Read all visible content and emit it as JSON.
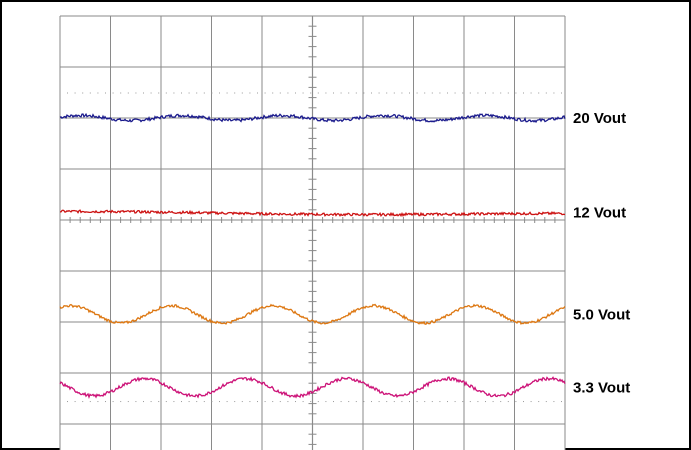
{
  "chart_data": {
    "type": "line",
    "title": "",
    "xlabel": "",
    "ylabel": "",
    "grid": true,
    "legend": "right",
    "divisions": {
      "x": 10,
      "y": 8
    },
    "series": [
      {
        "label": "20 Vout",
        "color": "#1a1a8c",
        "level_div": 6.0,
        "ripple_div": 0.05,
        "cycles": 5,
        "phase": 0.3,
        "noise_div": 0.03
      },
      {
        "label": "12 Vout",
        "color": "#cc1111",
        "level_div": 4.15,
        "ripple_div": 0.02,
        "cycles": 1,
        "phase": 1.2,
        "noise_div": 0.025
      },
      {
        "label": "5.0 Vout",
        "color": "#dd7711",
        "level_div": 2.15,
        "ripple_div": 0.17,
        "cycles": 5,
        "phase": 0.9,
        "noise_div": 0.025
      },
      {
        "label": "3.3 Vout",
        "color": "#cc1177",
        "level_div": 0.72,
        "ripple_div": 0.17,
        "cycles": 5,
        "phase": 2.6,
        "noise_div": 0.03
      }
    ]
  }
}
